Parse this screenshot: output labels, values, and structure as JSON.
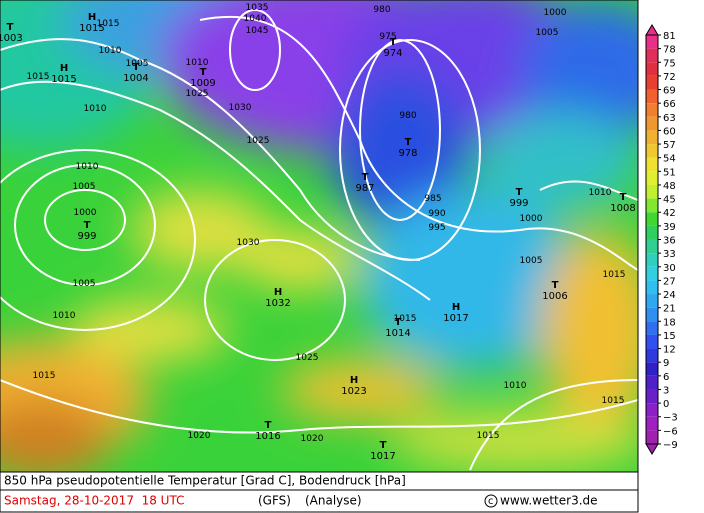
{
  "map": {
    "markers": [
      {
        "letter": "T",
        "value": "1003"
      },
      {
        "letter": "H",
        "value": "1015"
      },
      {
        "letter": "H",
        "value": "1015"
      },
      {
        "letter": "T",
        "value": "1004"
      },
      {
        "letter": "T",
        "value": "1009"
      },
      {
        "letter": "T",
        "value": "974"
      },
      {
        "letter": "T",
        "value": "978"
      },
      {
        "letter": "T",
        "value": "987"
      },
      {
        "letter": "T",
        "value": "999"
      },
      {
        "letter": "T",
        "value": "1008"
      },
      {
        "letter": "T",
        "value": "999"
      },
      {
        "letter": "H",
        "value": "1032"
      },
      {
        "letter": "H",
        "value": "1017"
      },
      {
        "letter": "T",
        "value": "1014"
      },
      {
        "letter": "T",
        "value": "1006"
      },
      {
        "letter": "H",
        "value": "1023"
      },
      {
        "letter": "T",
        "value": "1016"
      },
      {
        "letter": "T",
        "value": "1017"
      }
    ],
    "contour_labels": [
      "1015",
      "1010",
      "1005",
      "1015",
      "1010",
      "1010",
      "1025",
      "1030",
      "1025",
      "1035",
      "1040",
      "1045",
      "980",
      "975",
      "1000",
      "1005",
      "980",
      "985",
      "990",
      "995",
      "1000",
      "1005",
      "1010",
      "1015",
      "1010",
      "1005",
      "1000",
      "1005",
      "1010",
      "1030",
      "1025",
      "1015",
      "1020",
      "1020",
      "1015",
      "1010",
      "1015",
      "1015"
    ],
    "colorbar": {
      "ticks": [
        81,
        78,
        75,
        72,
        69,
        66,
        63,
        60,
        57,
        54,
        51,
        48,
        45,
        42,
        39,
        36,
        33,
        30,
        27,
        24,
        21,
        18,
        15,
        12,
        9,
        6,
        3,
        0,
        {
          "value": -3,
          "label": "−3"
        },
        {
          "value": -6,
          "label": "−6"
        },
        {
          "value": -9,
          "label": "−9"
        }
      ]
    }
  },
  "footer": {
    "caption": "850 hPa pseudopotentielle Temperatur [Grad C], Bodendruck [hPa]",
    "date": "Samstag, 28-10-2017  18 UTC",
    "model": "(GFS)",
    "analysis": "(Analyse)",
    "source": "www.wetter3.de"
  }
}
